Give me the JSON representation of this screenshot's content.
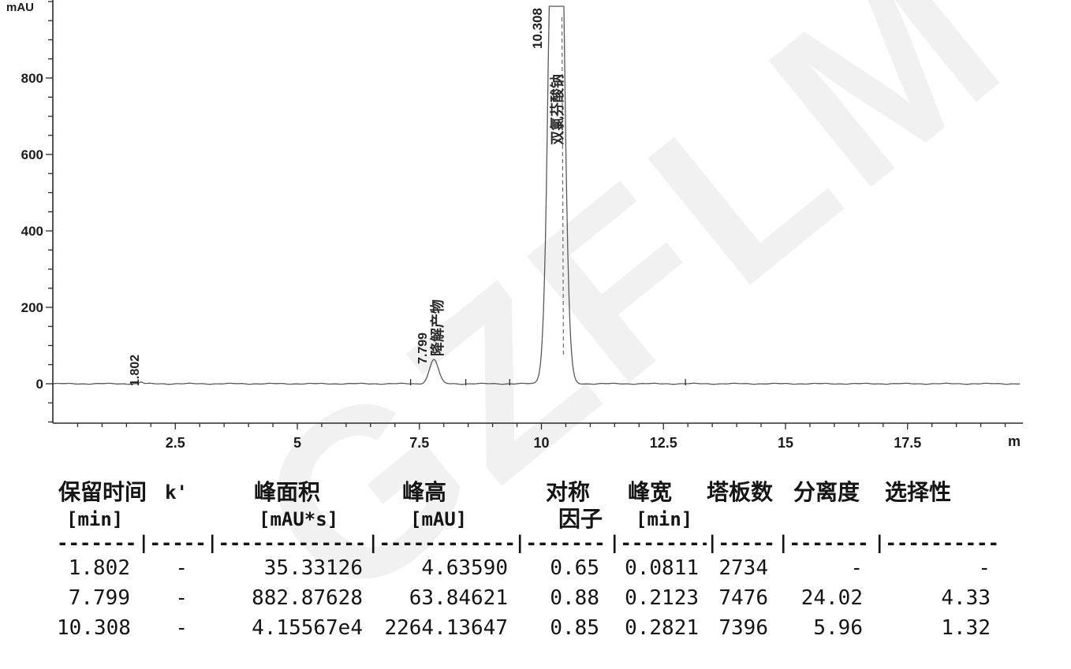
{
  "watermark": {
    "text": "GZFLM",
    "color": "#f1f1f1"
  },
  "chart_data": {
    "type": "line",
    "title": "",
    "ylabel": "mAU",
    "xlabel": "min",
    "x_unit_label": "m",
    "x_range": [
      0,
      19.8
    ],
    "y_range": [
      -100,
      1000
    ],
    "x_ticks_major": [
      2.5,
      5,
      7.5,
      10,
      12.5,
      15,
      17.5
    ],
    "x_minor_step": 0.5,
    "y_ticks_major": [
      0,
      200,
      400,
      600,
      800
    ],
    "y_minor_step": 50,
    "grid": false,
    "legend": "none",
    "baseline_mau": 0,
    "baseline_marks_min": [
      7.32,
      8.45,
      9.35,
      12.95
    ],
    "peaks": [
      {
        "rt": 1.802,
        "label": "1.802",
        "compound": "",
        "height_mau": 4.6359,
        "area_mau_s": 35.33126,
        "width_min": 0.0811
      },
      {
        "rt": 7.799,
        "label": "7.799",
        "compound": "降解产物",
        "height_mau": 63.84621,
        "area_mau_s": 882.87628,
        "width_min": 0.2123
      },
      {
        "rt": 10.308,
        "label": "10.308",
        "compound": "双氯芬酸钠",
        "height_mau": 2264.13647,
        "area_mau_s": 41556.7,
        "width_min": 0.2821,
        "clipped_at_mau": 1000
      }
    ]
  },
  "table": {
    "headers": [
      {
        "l1": "保留时间",
        "l2": "[min]"
      },
      {
        "l1": "k'",
        "l2": ""
      },
      {
        "l1": "峰面积",
        "l2": "[mAU*s]"
      },
      {
        "l1": "峰高",
        "l2": "[mAU]"
      },
      {
        "l1": "对称",
        "l2": "因子"
      },
      {
        "l1": "峰宽",
        "l2": "[min]"
      },
      {
        "l1": "塔板数",
        "l2": ""
      },
      {
        "l1": "分离度",
        "l2": ""
      },
      {
        "l1": "选择性",
        "l2": ""
      }
    ],
    "separator": [
      "-------",
      "|-----",
      "|-------------",
      "|------------",
      "|-------",
      "|--------",
      "|-----",
      "|-------",
      "|----------"
    ],
    "rows": [
      [
        "1.802",
        "-",
        "35.33126",
        "4.63590",
        "0.65",
        "0.0811",
        "2734",
        "-",
        "-"
      ],
      [
        "7.799",
        "-",
        "882.87628",
        "63.84621",
        "0.88",
        "0.2123",
        "7476",
        "24.02",
        "4.33"
      ],
      [
        "10.308",
        "-",
        "4.15567e4",
        "2264.13647",
        "0.85",
        "0.2821",
        "7396",
        "5.96",
        "1.32"
      ]
    ]
  }
}
